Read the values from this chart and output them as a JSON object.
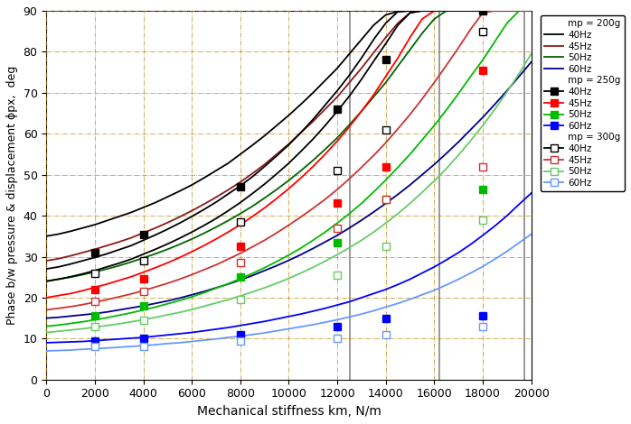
{
  "xlabel": "Mechanical stiffness km, N/m",
  "ylabel": "Phase b/w pressure & displacement ϕpx,  deg",
  "xlim": [
    0,
    20000
  ],
  "ylim": [
    0,
    90
  ],
  "xticks": [
    0,
    2000,
    4000,
    6000,
    8000,
    10000,
    12000,
    14000,
    16000,
    18000,
    20000
  ],
  "yticks": [
    0,
    10,
    20,
    30,
    40,
    50,
    60,
    70,
    80,
    90
  ],
  "x_dense": [
    0,
    500,
    1000,
    1500,
    2000,
    2500,
    3000,
    3500,
    4000,
    4500,
    5000,
    5500,
    6000,
    6500,
    7000,
    7500,
    8000,
    8500,
    9000,
    9500,
    10000,
    10500,
    11000,
    11500,
    12000,
    12500,
    13000,
    13500,
    14000,
    14500,
    15000,
    15500,
    16000,
    16500,
    17000,
    17500,
    18000,
    18500,
    19000,
    19500,
    20000
  ],
  "vertical_lines": [
    12500,
    16200,
    19700
  ],
  "series": {
    "mp200_40Hz": {
      "color": "#000000",
      "linewidth": 1.3,
      "has_marker": false,
      "values": [
        35.0,
        35.5,
        36.2,
        37.0,
        37.8,
        38.8,
        39.8,
        40.8,
        42.0,
        43.2,
        44.6,
        46.0,
        47.5,
        49.2,
        51.0,
        52.8,
        55.0,
        57.2,
        59.5,
        62.0,
        64.5,
        67.2,
        70.0,
        73.0,
        76.0,
        79.5,
        83.0,
        86.5,
        89.0,
        89.8,
        90.0,
        90.0,
        90.0,
        90.0,
        90.0,
        90.0,
        90.0,
        90.0,
        90.0,
        90.0,
        90.0
      ]
    },
    "mp200_45Hz": {
      "color": "#8B1A1A",
      "linewidth": 1.3,
      "has_marker": false,
      "values": [
        29.0,
        29.5,
        30.2,
        31.0,
        31.8,
        32.7,
        33.6,
        34.6,
        35.8,
        37.0,
        38.3,
        39.7,
        41.2,
        42.8,
        44.5,
        46.3,
        48.2,
        50.3,
        52.5,
        55.0,
        57.5,
        60.3,
        63.0,
        66.0,
        69.0,
        72.5,
        76.0,
        79.8,
        83.5,
        87.0,
        89.5,
        90.0,
        90.0,
        90.0,
        90.0,
        90.0,
        90.0,
        90.0,
        90.0,
        90.0,
        90.0
      ]
    },
    "mp200_50Hz": {
      "color": "#006400",
      "linewidth": 1.3,
      "has_marker": false,
      "values": [
        24.0,
        24.5,
        25.0,
        25.6,
        26.3,
        27.0,
        27.8,
        28.7,
        29.7,
        30.7,
        31.8,
        33.0,
        34.3,
        35.7,
        37.2,
        38.8,
        40.5,
        42.3,
        44.3,
        46.4,
        48.6,
        51.0,
        53.5,
        56.2,
        59.0,
        62.2,
        65.5,
        69.0,
        72.5,
        76.5,
        80.5,
        84.5,
        88.0,
        90.0,
        90.0,
        90.0,
        90.0,
        90.0,
        90.0,
        90.0,
        90.0
      ]
    },
    "mp200_60Hz": {
      "color": "#00008B",
      "linewidth": 1.3,
      "has_marker": false,
      "values": [
        15.0,
        15.2,
        15.5,
        15.8,
        16.1,
        16.5,
        17.0,
        17.5,
        18.0,
        18.6,
        19.2,
        19.9,
        20.7,
        21.5,
        22.4,
        23.3,
        24.3,
        25.4,
        26.6,
        27.8,
        29.1,
        30.5,
        32.0,
        33.6,
        35.2,
        37.0,
        38.9,
        40.9,
        43.0,
        45.2,
        47.5,
        50.0,
        52.5,
        55.2,
        58.0,
        61.0,
        64.0,
        67.2,
        70.5,
        74.0,
        77.5
      ]
    },
    "mp250_40Hz": {
      "color": "#000000",
      "linewidth": 1.3,
      "has_marker": true,
      "markerfacecolor": "#000000",
      "markeredgecolor": "#000000",
      "marker_x": [
        2000,
        4000,
        8000,
        12000,
        14000,
        18000
      ],
      "marker_y": [
        31.0,
        35.5,
        47.0,
        66.0,
        78.0,
        90.0
      ],
      "values": [
        27.0,
        27.5,
        28.2,
        29.0,
        29.8,
        30.7,
        31.7,
        32.7,
        34.0,
        35.3,
        36.7,
        38.2,
        39.8,
        41.5,
        43.3,
        45.3,
        47.3,
        49.5,
        52.0,
        54.6,
        57.3,
        60.3,
        63.5,
        67.0,
        70.5,
        74.3,
        78.5,
        83.0,
        87.0,
        89.8,
        90.0,
        90.0,
        90.0,
        90.0,
        90.0,
        90.0,
        90.0,
        90.0,
        90.0,
        90.0,
        90.0
      ]
    },
    "mp250_45Hz": {
      "color": "#FF0000",
      "linewidth": 1.3,
      "has_marker": true,
      "markerfacecolor": "#FF0000",
      "markeredgecolor": "#FF0000",
      "marker_x": [
        2000,
        4000,
        8000,
        12000,
        14000,
        18000
      ],
      "marker_y": [
        22.0,
        24.5,
        32.5,
        43.0,
        52.0,
        75.5
      ],
      "values": [
        20.0,
        20.5,
        21.0,
        21.7,
        22.5,
        23.3,
        24.2,
        25.1,
        26.2,
        27.3,
        28.5,
        29.8,
        31.2,
        32.7,
        34.3,
        36.0,
        37.8,
        39.8,
        41.9,
        44.2,
        46.6,
        49.2,
        52.0,
        55.0,
        58.2,
        61.7,
        65.5,
        69.5,
        74.0,
        78.5,
        83.5,
        88.0,
        90.0,
        90.0,
        90.0,
        90.0,
        90.0,
        90.0,
        90.0,
        90.0,
        90.0
      ]
    },
    "mp250_50Hz": {
      "color": "#00BB00",
      "linewidth": 1.3,
      "has_marker": true,
      "markerfacecolor": "#00BB00",
      "markeredgecolor": "#00BB00",
      "marker_x": [
        2000,
        4000,
        8000,
        12000,
        14000,
        18000
      ],
      "marker_y": [
        15.5,
        18.0,
        25.0,
        33.5,
        44.0,
        46.5
      ],
      "values": [
        13.0,
        13.3,
        13.7,
        14.1,
        14.6,
        15.1,
        15.7,
        16.3,
        17.0,
        17.7,
        18.5,
        19.3,
        20.2,
        21.2,
        22.3,
        23.4,
        24.6,
        25.9,
        27.3,
        28.8,
        30.4,
        32.1,
        34.0,
        36.0,
        38.2,
        40.5,
        43.0,
        45.8,
        48.7,
        51.8,
        55.0,
        58.5,
        62.0,
        65.8,
        69.8,
        74.0,
        78.0,
        82.5,
        87.0,
        90.0,
        90.0
      ]
    },
    "mp250_60Hz": {
      "color": "#0000FF",
      "linewidth": 1.3,
      "has_marker": true,
      "markerfacecolor": "#0000FF",
      "markeredgecolor": "#0000FF",
      "marker_x": [
        2000,
        4000,
        8000,
        12000,
        14000,
        18000
      ],
      "marker_y": [
        9.5,
        10.0,
        11.0,
        13.0,
        15.0,
        15.5
      ],
      "values": [
        9.0,
        9.1,
        9.2,
        9.3,
        9.5,
        9.7,
        9.9,
        10.1,
        10.3,
        10.6,
        10.9,
        11.2,
        11.5,
        11.9,
        12.3,
        12.7,
        13.2,
        13.7,
        14.2,
        14.8,
        15.4,
        16.0,
        16.7,
        17.4,
        18.2,
        19.0,
        20.0,
        21.0,
        22.0,
        23.2,
        24.5,
        26.0,
        27.5,
        29.2,
        31.0,
        33.0,
        35.2,
        37.5,
        40.0,
        42.8,
        45.5
      ]
    },
    "mp300_40Hz": {
      "color": "#000000",
      "linewidth": 1.3,
      "has_marker": true,
      "markerfacecolor": "white",
      "markeredgecolor": "#000000",
      "marker_x": [
        2000,
        4000,
        8000,
        12000,
        14000,
        18000
      ],
      "marker_y": [
        26.0,
        29.0,
        38.5,
        51.0,
        61.0,
        85.0
      ],
      "values": [
        24.0,
        24.5,
        25.1,
        25.8,
        26.6,
        27.5,
        28.4,
        29.4,
        30.6,
        31.8,
        33.1,
        34.5,
        36.0,
        37.6,
        39.3,
        41.2,
        43.2,
        45.4,
        47.7,
        50.2,
        52.8,
        55.7,
        58.7,
        62.0,
        65.5,
        69.2,
        73.3,
        77.7,
        82.0,
        86.5,
        89.5,
        90.0,
        90.0,
        90.0,
        90.0,
        90.0,
        90.0,
        90.0,
        90.0,
        90.0,
        90.0
      ]
    },
    "mp300_45Hz": {
      "color": "#CC3333",
      "linewidth": 1.3,
      "has_marker": true,
      "markerfacecolor": "white",
      "markeredgecolor": "#CC3333",
      "marker_x": [
        2000,
        4000,
        8000,
        12000,
        14000,
        18000
      ],
      "marker_y": [
        19.0,
        21.5,
        28.5,
        37.0,
        44.0,
        52.0
      ],
      "values": [
        17.0,
        17.4,
        17.8,
        18.3,
        18.9,
        19.5,
        20.2,
        20.9,
        21.7,
        22.6,
        23.5,
        24.5,
        25.6,
        26.8,
        28.0,
        29.4,
        30.8,
        32.4,
        34.0,
        35.8,
        37.7,
        39.7,
        41.8,
        44.0,
        46.4,
        49.0,
        51.8,
        54.7,
        57.8,
        61.2,
        64.7,
        68.5,
        72.5,
        76.7,
        81.0,
        85.5,
        89.5,
        90.0,
        90.0,
        90.0,
        90.0
      ]
    },
    "mp300_50Hz": {
      "color": "#66CC66",
      "linewidth": 1.3,
      "has_marker": true,
      "markerfacecolor": "white",
      "markeredgecolor": "#66CC66",
      "marker_x": [
        2000,
        4000,
        8000,
        12000,
        14000,
        18000
      ],
      "marker_y": [
        13.0,
        14.5,
        19.5,
        25.5,
        32.5,
        39.0
      ],
      "values": [
        11.5,
        11.8,
        12.1,
        12.4,
        12.8,
        13.2,
        13.6,
        14.1,
        14.6,
        15.2,
        15.8,
        16.4,
        17.1,
        17.9,
        18.7,
        19.5,
        20.4,
        21.4,
        22.4,
        23.5,
        24.7,
        26.0,
        27.4,
        28.9,
        30.5,
        32.2,
        34.0,
        36.0,
        38.2,
        40.5,
        43.0,
        45.7,
        48.5,
        51.5,
        54.8,
        58.3,
        62.0,
        66.0,
        70.2,
        74.7,
        79.5
      ]
    },
    "mp300_60Hz": {
      "color": "#6699FF",
      "linewidth": 1.3,
      "has_marker": true,
      "markerfacecolor": "white",
      "markeredgecolor": "#6699FF",
      "marker_x": [
        2000,
        4000,
        8000,
        12000,
        14000,
        18000
      ],
      "marker_y": [
        8.0,
        8.0,
        9.5,
        10.0,
        11.0,
        13.0
      ],
      "values": [
        7.0,
        7.1,
        7.2,
        7.4,
        7.5,
        7.7,
        7.9,
        8.1,
        8.3,
        8.5,
        8.8,
        9.0,
        9.3,
        9.6,
        9.9,
        10.3,
        10.6,
        11.0,
        11.4,
        11.9,
        12.4,
        12.9,
        13.4,
        14.0,
        14.6,
        15.3,
        16.0,
        16.8,
        17.7,
        18.6,
        19.6,
        20.7,
        21.8,
        23.1,
        24.5,
        26.0,
        27.6,
        29.4,
        31.3,
        33.4,
        35.5
      ]
    }
  }
}
